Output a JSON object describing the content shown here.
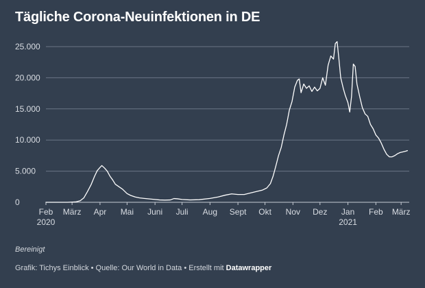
{
  "title": "Tägliche Corona-Neuinfektionen in DE",
  "note": "Bereinigt",
  "footer": {
    "credit": "Grafik: Tichys Einblick • Quelle: Our World in Data • Erstellt mit",
    "tool": "Datawrapper"
  },
  "colors": {
    "background": "#333f4f",
    "line": "#ffffff",
    "grid": "#6b7686",
    "text": "#d9dde3"
  },
  "chart_data": {
    "type": "line",
    "title": "Tägliche Corona-Neuinfektionen in DE",
    "xlabel": "",
    "ylabel": "",
    "ylim": [
      0,
      25000
    ],
    "xlim": [
      "2020-02-01",
      "2021-03-10"
    ],
    "grid": true,
    "y_ticks": [
      {
        "value": 0,
        "label": "0"
      },
      {
        "value": 5000,
        "label": "5.000"
      },
      {
        "value": 10000,
        "label": "10.000"
      },
      {
        "value": 15000,
        "label": "15.000"
      },
      {
        "value": 20000,
        "label": "20.000"
      },
      {
        "value": 25000,
        "label": "25.000"
      }
    ],
    "x_ticks": [
      {
        "date": "2020-02-01",
        "label": "Feb",
        "sublabel": "2020"
      },
      {
        "date": "2020-03-01",
        "label": "März"
      },
      {
        "date": "2020-04-01",
        "label": "Apr"
      },
      {
        "date": "2020-05-01",
        "label": "Mai"
      },
      {
        "date": "2020-06-01",
        "label": "Juni"
      },
      {
        "date": "2020-07-01",
        "label": "Juli"
      },
      {
        "date": "2020-08-01",
        "label": "Aug"
      },
      {
        "date": "2020-09-01",
        "label": "Sept"
      },
      {
        "date": "2020-10-01",
        "label": "Okt"
      },
      {
        "date": "2020-11-01",
        "label": "Nov"
      },
      {
        "date": "2020-12-01",
        "label": "Dez"
      },
      {
        "date": "2021-01-01",
        "label": "Jan",
        "sublabel": "2021"
      },
      {
        "date": "2021-02-01",
        "label": "Feb"
      },
      {
        "date": "2021-03-01",
        "label": "März"
      }
    ],
    "series": [
      {
        "points": [
          [
            "2020-02-01",
            0
          ],
          [
            "2020-02-25",
            0
          ],
          [
            "2020-03-05",
            60
          ],
          [
            "2020-03-10",
            250
          ],
          [
            "2020-03-14",
            700
          ],
          [
            "2020-03-18",
            1700
          ],
          [
            "2020-03-22",
            2800
          ],
          [
            "2020-03-26",
            4200
          ],
          [
            "2020-03-29",
            5100
          ],
          [
            "2020-04-01",
            5600
          ],
          [
            "2020-04-03",
            5900
          ],
          [
            "2020-04-06",
            5500
          ],
          [
            "2020-04-09",
            5000
          ],
          [
            "2020-04-12",
            4200
          ],
          [
            "2020-04-15",
            3600
          ],
          [
            "2020-04-18",
            2900
          ],
          [
            "2020-04-22",
            2500
          ],
          [
            "2020-04-26",
            2100
          ],
          [
            "2020-05-01",
            1400
          ],
          [
            "2020-05-05",
            1100
          ],
          [
            "2020-05-10",
            850
          ],
          [
            "2020-05-15",
            700
          ],
          [
            "2020-05-20",
            620
          ],
          [
            "2020-05-25",
            550
          ],
          [
            "2020-06-01",
            450
          ],
          [
            "2020-06-06",
            380
          ],
          [
            "2020-06-12",
            350
          ],
          [
            "2020-06-18",
            380
          ],
          [
            "2020-06-22",
            600
          ],
          [
            "2020-06-26",
            560
          ],
          [
            "2020-07-01",
            450
          ],
          [
            "2020-07-10",
            380
          ],
          [
            "2020-07-20",
            420
          ],
          [
            "2020-08-01",
            620
          ],
          [
            "2020-08-10",
            850
          ],
          [
            "2020-08-18",
            1150
          ],
          [
            "2020-08-25",
            1350
          ],
          [
            "2020-09-01",
            1250
          ],
          [
            "2020-09-08",
            1250
          ],
          [
            "2020-09-15",
            1500
          ],
          [
            "2020-09-22",
            1750
          ],
          [
            "2020-09-28",
            1950
          ],
          [
            "2020-10-03",
            2300
          ],
          [
            "2020-10-07",
            3000
          ],
          [
            "2020-10-10",
            4200
          ],
          [
            "2020-10-13",
            5800
          ],
          [
            "2020-10-16",
            7500
          ],
          [
            "2020-10-19",
            8800
          ],
          [
            "2020-10-22",
            10800
          ],
          [
            "2020-10-25",
            12500
          ],
          [
            "2020-10-28",
            14800
          ],
          [
            "2020-10-31",
            16200
          ],
          [
            "2020-11-03",
            18500
          ],
          [
            "2020-11-06",
            19600
          ],
          [
            "2020-11-08",
            19800
          ],
          [
            "2020-11-10",
            17600
          ],
          [
            "2020-11-13",
            19000
          ],
          [
            "2020-11-16",
            18300
          ],
          [
            "2020-11-19",
            18700
          ],
          [
            "2020-11-22",
            17800
          ],
          [
            "2020-11-25",
            18500
          ],
          [
            "2020-11-28",
            17900
          ],
          [
            "2020-12-01",
            18300
          ],
          [
            "2020-12-04",
            20000
          ],
          [
            "2020-12-07",
            18800
          ],
          [
            "2020-12-10",
            22000
          ],
          [
            "2020-12-13",
            23500
          ],
          [
            "2020-12-16",
            23000
          ],
          [
            "2020-12-18",
            25500
          ],
          [
            "2020-12-20",
            25800
          ],
          [
            "2020-12-22",
            23000
          ],
          [
            "2020-12-24",
            20000
          ],
          [
            "2020-12-27",
            18200
          ],
          [
            "2020-12-29",
            17200
          ],
          [
            "2021-01-01",
            16000
          ],
          [
            "2021-01-03",
            14500
          ],
          [
            "2021-01-05",
            17000
          ],
          [
            "2021-01-07",
            22200
          ],
          [
            "2021-01-09",
            21800
          ],
          [
            "2021-01-11",
            19000
          ],
          [
            "2021-01-14",
            17000
          ],
          [
            "2021-01-17",
            15200
          ],
          [
            "2021-01-20",
            14200
          ],
          [
            "2021-01-23",
            13800
          ],
          [
            "2021-01-26",
            12500
          ],
          [
            "2021-01-29",
            11800
          ],
          [
            "2021-02-01",
            10800
          ],
          [
            "2021-02-04",
            10300
          ],
          [
            "2021-02-07",
            9500
          ],
          [
            "2021-02-10",
            8500
          ],
          [
            "2021-02-13",
            7700
          ],
          [
            "2021-02-16",
            7300
          ],
          [
            "2021-02-19",
            7300
          ],
          [
            "2021-02-22",
            7500
          ],
          [
            "2021-02-25",
            7800
          ],
          [
            "2021-02-28",
            8000
          ],
          [
            "2021-03-03",
            8100
          ],
          [
            "2021-03-06",
            8200
          ],
          [
            "2021-03-08",
            8300
          ]
        ]
      }
    ]
  }
}
